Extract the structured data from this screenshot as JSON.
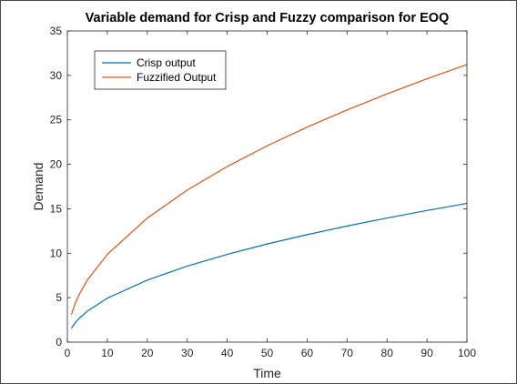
{
  "chart_data": {
    "type": "line",
    "title": "Variable demand for Crisp and Fuzzy comparison for EOQ",
    "xlabel": "Time",
    "ylabel": "Demand",
    "xlim": [
      0,
      100
    ],
    "ylim": [
      0,
      35
    ],
    "xticks": [
      0,
      10,
      20,
      30,
      40,
      50,
      60,
      70,
      80,
      90,
      100
    ],
    "yticks": [
      0,
      5,
      10,
      15,
      20,
      25,
      30,
      35
    ],
    "grid": false,
    "legend_position": "top-left",
    "x": [
      1,
      2,
      3,
      5,
      10,
      20,
      30,
      40,
      50,
      60,
      70,
      80,
      90,
      100
    ],
    "series": [
      {
        "name": "Crisp output",
        "color": "#0072BD",
        "values": [
          1.56,
          2.21,
          2.7,
          3.49,
          4.94,
          6.98,
          8.55,
          9.87,
          11.04,
          12.09,
          13.06,
          13.96,
          14.81,
          15.61
        ]
      },
      {
        "name": "Fuzzified Output",
        "color": "#D95319",
        "values": [
          3.12,
          4.41,
          5.41,
          6.98,
          9.87,
          13.96,
          17.1,
          19.75,
          22.08,
          24.18,
          26.12,
          27.92,
          29.62,
          31.22
        ]
      }
    ]
  }
}
